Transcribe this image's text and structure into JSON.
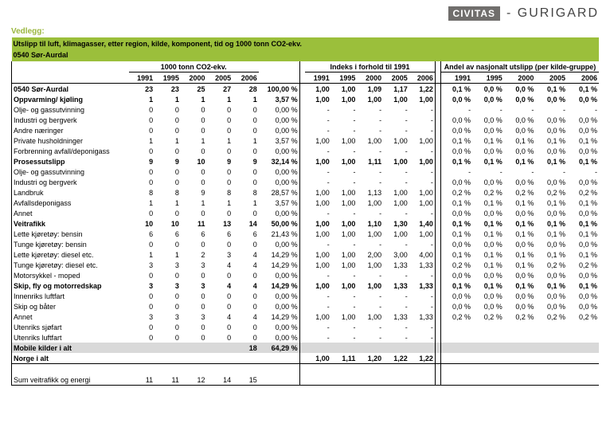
{
  "header": {
    "civitas": "CIVITAS",
    "gurigard": "- GURIGARD",
    "vedlegg": "Vedlegg:"
  },
  "titles": {
    "main": "Utslipp til luft, klimagasser, etter region, kilde, komponent, tid  og 1000 tonn CO2-ekv.",
    "region": "0540 Sør-Aurdal",
    "group1": "1000 tonn CO2-ekv.",
    "group2": "Indeks i forhold til 1991",
    "group3": "Andel av nasjonalt utslipp (per kilde-gruppe)"
  },
  "years": [
    "1991",
    "1995",
    "2000",
    "2005",
    "2006"
  ],
  "rows": [
    {
      "l": "0540 Sør-Aurdal",
      "b": 1,
      "v": [
        "23",
        "23",
        "25",
        "27",
        "28"
      ],
      "p": "100,00 %",
      "i": [
        "1,00",
        "1,00",
        "1,09",
        "1,17",
        "1,22"
      ],
      "a": [
        "0,1 %",
        "0,0 %",
        "0,0 %",
        "0,1 %",
        "0,1 %"
      ]
    },
    {
      "l": "Oppvarming/ kjøling",
      "b": 1,
      "v": [
        "1",
        "1",
        "1",
        "1",
        "1"
      ],
      "p": "3,57 %",
      "i": [
        "1,00",
        "1,00",
        "1,00",
        "1,00",
        "1,00"
      ],
      "a": [
        "0,0 %",
        "0,0 %",
        "0,0 %",
        "0,0 %",
        "0,0 %"
      ]
    },
    {
      "l": "Olje- og gassutvinning",
      "v": [
        "0",
        "0",
        "0",
        "0",
        "0"
      ],
      "p": "0,00 %",
      "i": [
        "-",
        "-",
        "-",
        "-",
        "-"
      ],
      "a": [
        "-",
        "-",
        "-",
        "-",
        "-"
      ]
    },
    {
      "l": "Industri og bergverk",
      "v": [
        "0",
        "0",
        "0",
        "0",
        "0"
      ],
      "p": "0,00 %",
      "i": [
        "-",
        "-",
        "-",
        "-",
        "-"
      ],
      "a": [
        "0,0 %",
        "0,0 %",
        "0,0 %",
        "0,0 %",
        "0,0 %"
      ]
    },
    {
      "l": "Andre næringer",
      "v": [
        "0",
        "0",
        "0",
        "0",
        "0"
      ],
      "p": "0,00 %",
      "i": [
        "-",
        "-",
        "-",
        "-",
        "-"
      ],
      "a": [
        "0,0 %",
        "0,0 %",
        "0,0 %",
        "0,0 %",
        "0,0 %"
      ]
    },
    {
      "l": "Private husholdninger",
      "v": [
        "1",
        "1",
        "1",
        "1",
        "1"
      ],
      "p": "3,57 %",
      "i": [
        "1,00",
        "1,00",
        "1,00",
        "1,00",
        "1,00"
      ],
      "a": [
        "0,1 %",
        "0,1 %",
        "0,1 %",
        "0,1 %",
        "0,1 %"
      ]
    },
    {
      "l": "Forbrenning avfall/deponigass",
      "v": [
        "0",
        "0",
        "0",
        "0",
        "0"
      ],
      "p": "0,00 %",
      "i": [
        "-",
        "-",
        "-",
        "-",
        "-"
      ],
      "a": [
        "0,0 %",
        "0,0 %",
        "0,0 %",
        "0,0 %",
        "0,0 %"
      ]
    },
    {
      "l": "Prosessutslipp",
      "b": 1,
      "v": [
        "9",
        "9",
        "10",
        "9",
        "9"
      ],
      "p": "32,14 %",
      "i": [
        "1,00",
        "1,00",
        "1,11",
        "1,00",
        "1,00"
      ],
      "a": [
        "0,1 %",
        "0,1 %",
        "0,1 %",
        "0,1 %",
        "0,1 %"
      ]
    },
    {
      "l": "Olje- og gassutvinning",
      "v": [
        "0",
        "0",
        "0",
        "0",
        "0"
      ],
      "p": "0,00 %",
      "i": [
        "-",
        "-",
        "-",
        "-",
        "-"
      ],
      "a": [
        "-",
        "-",
        "-",
        "-",
        "-"
      ]
    },
    {
      "l": "Industri og bergverk",
      "v": [
        "0",
        "0",
        "0",
        "0",
        "0"
      ],
      "p": "0,00 %",
      "i": [
        "-",
        "-",
        "-",
        "-",
        "-"
      ],
      "a": [
        "0,0 %",
        "0,0 %",
        "0,0 %",
        "0,0 %",
        "0,0 %"
      ]
    },
    {
      "l": "Landbruk",
      "v": [
        "8",
        "8",
        "9",
        "8",
        "8"
      ],
      "p": "28,57 %",
      "i": [
        "1,00",
        "1,00",
        "1,13",
        "1,00",
        "1,00"
      ],
      "a": [
        "0,2 %",
        "0,2 %",
        "0,2 %",
        "0,2 %",
        "0,2 %"
      ]
    },
    {
      "l": "Avfallsdeponigass",
      "v": [
        "1",
        "1",
        "1",
        "1",
        "1"
      ],
      "p": "3,57 %",
      "i": [
        "1,00",
        "1,00",
        "1,00",
        "1,00",
        "1,00"
      ],
      "a": [
        "0,1 %",
        "0,1 %",
        "0,1 %",
        "0,1 %",
        "0,1 %"
      ]
    },
    {
      "l": "Annet",
      "v": [
        "0",
        "0",
        "0",
        "0",
        "0"
      ],
      "p": "0,00 %",
      "i": [
        "-",
        "-",
        "-",
        "-",
        "-"
      ],
      "a": [
        "0,0 %",
        "0,0 %",
        "0,0 %",
        "0,0 %",
        "0,0 %"
      ]
    },
    {
      "l": "Veitrafikk",
      "b": 1,
      "v": [
        "10",
        "10",
        "11",
        "13",
        "14"
      ],
      "p": "50,00 %",
      "i": [
        "1,00",
        "1,00",
        "1,10",
        "1,30",
        "1,40"
      ],
      "a": [
        "0,1 %",
        "0,1 %",
        "0,1 %",
        "0,1 %",
        "0,1 %"
      ]
    },
    {
      "l": "Lette kjøretøy: bensin",
      "v": [
        "6",
        "6",
        "6",
        "6",
        "6"
      ],
      "p": "21,43 %",
      "i": [
        "1,00",
        "1,00",
        "1,00",
        "1,00",
        "1,00"
      ],
      "a": [
        "0,1 %",
        "0,1 %",
        "0,1 %",
        "0,1 %",
        "0,1 %"
      ]
    },
    {
      "l": "Tunge kjøretøy: bensin",
      "v": [
        "0",
        "0",
        "0",
        "0",
        "0"
      ],
      "p": "0,00 %",
      "i": [
        "-",
        "-",
        "-",
        "-",
        "-"
      ],
      "a": [
        "0,0 %",
        "0,0 %",
        "0,0 %",
        "0,0 %",
        "0,0 %"
      ]
    },
    {
      "l": "Lette kjøretøy: diesel etc.",
      "v": [
        "1",
        "1",
        "2",
        "3",
        "4"
      ],
      "p": "14,29 %",
      "i": [
        "1,00",
        "1,00",
        "2,00",
        "3,00",
        "4,00"
      ],
      "a": [
        "0,1 %",
        "0,1 %",
        "0,1 %",
        "0,1 %",
        "0,1 %"
      ]
    },
    {
      "l": "Tunge kjøretøy: diesel etc.",
      "v": [
        "3",
        "3",
        "3",
        "4",
        "4"
      ],
      "p": "14,29 %",
      "i": [
        "1,00",
        "1,00",
        "1,00",
        "1,33",
        "1,33"
      ],
      "a": [
        "0,2 %",
        "0,1 %",
        "0,1 %",
        "0,2 %",
        "0,2 %"
      ]
    },
    {
      "l": "Motorsykkel - moped",
      "v": [
        "0",
        "0",
        "0",
        "0",
        "0"
      ],
      "p": "0,00 %",
      "i": [
        "-",
        "-",
        "-",
        "-",
        "-"
      ],
      "a": [
        "0,0 %",
        "0,0 %",
        "0,0 %",
        "0,0 %",
        "0,0 %"
      ]
    },
    {
      "l": "Skip, fly og motorredskap",
      "b": 1,
      "v": [
        "3",
        "3",
        "3",
        "4",
        "4"
      ],
      "p": "14,29 %",
      "i": [
        "1,00",
        "1,00",
        "1,00",
        "1,33",
        "1,33"
      ],
      "a": [
        "0,1 %",
        "0,1 %",
        "0,1 %",
        "0,1 %",
        "0,1 %"
      ]
    },
    {
      "l": "Innenriks luftfart",
      "v": [
        "0",
        "0",
        "0",
        "0",
        "0"
      ],
      "p": "0,00 %",
      "i": [
        "-",
        "-",
        "-",
        "-",
        "-"
      ],
      "a": [
        "0,0 %",
        "0,0 %",
        "0,0 %",
        "0,0 %",
        "0,0 %"
      ]
    },
    {
      "l": "Skip og båter",
      "v": [
        "0",
        "0",
        "0",
        "0",
        "0"
      ],
      "p": "0,00 %",
      "i": [
        "-",
        "-",
        "-",
        "-",
        "-"
      ],
      "a": [
        "0,0 %",
        "0,0 %",
        "0,0 %",
        "0,0 %",
        "0,0 %"
      ]
    },
    {
      "l": "Annet",
      "v": [
        "3",
        "3",
        "3",
        "4",
        "4"
      ],
      "p": "14,29 %",
      "i": [
        "1,00",
        "1,00",
        "1,00",
        "1,33",
        "1,33"
      ],
      "a": [
        "0,2 %",
        "0,2 %",
        "0,2 %",
        "0,2 %",
        "0,2 %"
      ]
    },
    {
      "l": "Utenriks sjøfart",
      "v": [
        "0",
        "0",
        "0",
        "0",
        "0"
      ],
      "p": "0,00 %",
      "i": [
        "-",
        "-",
        "-",
        "-",
        "-"
      ],
      "a": [
        "",
        "",
        "",
        "",
        ""
      ]
    },
    {
      "l": "Utenriks luftfart",
      "v": [
        "0",
        "0",
        "0",
        "0",
        "0"
      ],
      "p": "0,00 %",
      "i": [
        "-",
        "-",
        "-",
        "-",
        "-"
      ],
      "a": [
        "",
        "",
        "",
        "",
        ""
      ]
    },
    {
      "l": "Mobile kilder i alt",
      "b": 1,
      "sh": 1,
      "v": [
        "",
        "",
        "",
        "",
        "18"
      ],
      "p": "64,29 %",
      "i": [
        "",
        "",
        "",
        "",
        ""
      ],
      "a": [
        "",
        "",
        "",
        "",
        ""
      ]
    },
    {
      "l": "Norge i alt",
      "b": 1,
      "v": [
        "",
        "",
        "",
        "",
        ""
      ],
      "p": "",
      "i": [
        "1,00",
        "1,11",
        "1,20",
        "1,22",
        "1,22"
      ],
      "a": [
        "",
        "",
        "",
        "",
        ""
      ]
    }
  ],
  "sumRow": {
    "l": "Sum veitrafikk og energi",
    "v": [
      "11",
      "11",
      "12",
      "14",
      "15"
    ]
  }
}
